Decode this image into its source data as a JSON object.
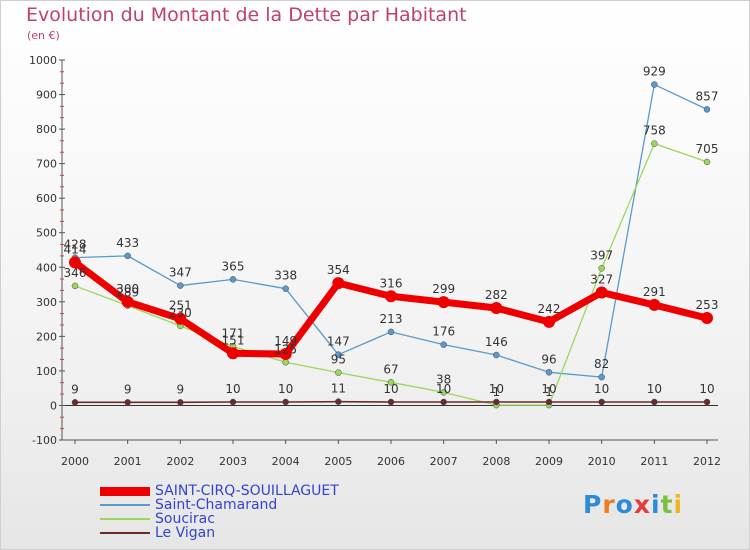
{
  "title": "Evolution du Montant de la Dette par Habitant",
  "subtitle": "(en €)",
  "logo": {
    "text": "Proxiti",
    "colors": [
      "#2e8bd8",
      "#f07c1e",
      "#2e8bd8",
      "#e43c3c",
      "#2e8bd8",
      "#7cc043",
      "#f0b51e"
    ]
  },
  "chart_data": {
    "type": "line",
    "x": [
      "2000",
      "2001",
      "2002",
      "2003",
      "2004",
      "2005",
      "2006",
      "2007",
      "2008",
      "2009",
      "2010",
      "2011",
      "2012"
    ],
    "ylim": [
      -100,
      1000
    ],
    "yticks": [
      -100,
      0,
      100,
      200,
      300,
      400,
      500,
      600,
      700,
      800,
      900,
      1000
    ],
    "grid": false,
    "legend_position": "bottom-left",
    "series": [
      {
        "name": "SAINT-CIRQ-SOUILLAGUET",
        "color": "#ee0000",
        "width": 7,
        "values": [
          414,
          300,
          251,
          151,
          149,
          354,
          316,
          299,
          282,
          242,
          327,
          291,
          253
        ],
        "labels": [
          "414",
          "300",
          "251",
          "151",
          "149",
          "354",
          "316",
          "299",
          "282",
          "242",
          "327",
          "291",
          "253"
        ]
      },
      {
        "name": "Saint-Chamarand",
        "color": "#5a9acb",
        "width": 1.3,
        "values": [
          428,
          433,
          347,
          365,
          338,
          147,
          213,
          176,
          146,
          96,
          82,
          929,
          857
        ],
        "labels": [
          "428",
          "433",
          "347",
          "365",
          "338",
          "147",
          "213",
          "176",
          "146",
          "96",
          "82",
          "929",
          "857"
        ]
      },
      {
        "name": "Soucirac",
        "color": "#9ad85a",
        "width": 1.3,
        "values": [
          346,
          289,
          230,
          171,
          125,
          95,
          67,
          38,
          1,
          1,
          397,
          758,
          705
        ],
        "labels": [
          "346",
          "289",
          "230",
          "171",
          "125",
          "95",
          "67",
          "38",
          "1",
          "1",
          "397",
          "758",
          "705"
        ]
      },
      {
        "name": "Le Vigan",
        "color": "#6b2a2a",
        "width": 1.6,
        "values": [
          9,
          9,
          9,
          10,
          10,
          11,
          10,
          10,
          10,
          10,
          10,
          10,
          10
        ],
        "labels": [
          "9",
          "9",
          "9",
          "10",
          "10",
          "11",
          "10",
          "10",
          "10",
          "10",
          "10",
          "10",
          "10"
        ]
      }
    ]
  }
}
